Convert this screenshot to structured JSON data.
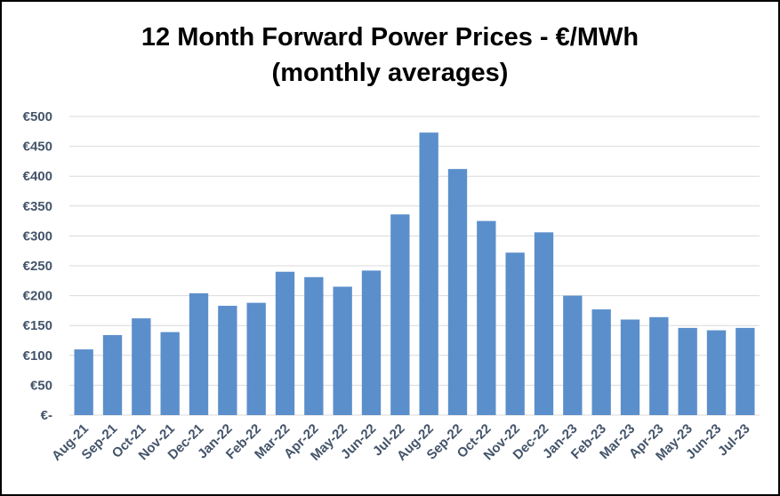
{
  "chart_data": {
    "type": "bar",
    "title_line1": "12 Month Forward Power Prices - €/MWh",
    "title_line2": "(monthly averages)",
    "categories": [
      "Aug-21",
      "Sep-21",
      "Oct-21",
      "Nov-21",
      "Dec-21",
      "Jan-22",
      "Feb-22",
      "Mar-22",
      "Apr-22",
      "May-22",
      "Jun-22",
      "Jul-22",
      "Aug-22",
      "Sep-22",
      "Oct-22",
      "Nov-22",
      "Dec-22",
      "Jan-23",
      "Feb-23",
      "Mar-23",
      "Apr-23",
      "May-23",
      "Jun-23",
      "Jul-23"
    ],
    "values": [
      110,
      134,
      162,
      139,
      204,
      183,
      188,
      240,
      231,
      215,
      242,
      336,
      473,
      412,
      325,
      272,
      306,
      200,
      177,
      160,
      164,
      146,
      142,
      146
    ],
    "ylim": [
      0,
      500
    ],
    "yticks": [
      0,
      50,
      100,
      150,
      200,
      250,
      300,
      350,
      400,
      450,
      500
    ],
    "ytick_labels": [
      "€-",
      "€50",
      "€100",
      "€150",
      "€200",
      "€250",
      "€300",
      "€350",
      "€400",
      "€450",
      "€500"
    ],
    "grid": true,
    "legend": "none",
    "bar_color": "#5b8fcb",
    "grid_color": "#d9d9d9",
    "tick_color": "#44546a"
  }
}
